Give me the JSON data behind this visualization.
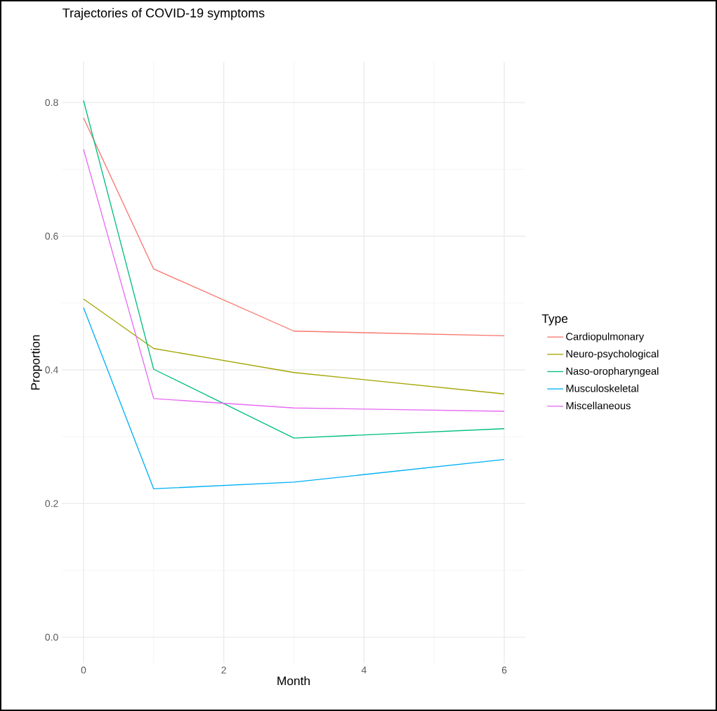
{
  "chart_data": {
    "type": "line",
    "title": "Trajectories of COVID-19 symptoms",
    "xlabel": "Month",
    "ylabel": "Proportion",
    "legend_title": "Type",
    "x": [
      0,
      1,
      3,
      6
    ],
    "series": [
      {
        "name": "Cardiopulmonary",
        "color": "#f8766d",
        "values": [
          0.777,
          0.551,
          0.458,
          0.451
        ]
      },
      {
        "name": "Neuro-psychological",
        "color": "#a3a500",
        "values": [
          0.506,
          0.432,
          0.396,
          0.364
        ]
      },
      {
        "name": "Naso-oropharyngeal",
        "color": "#00bf7d",
        "values": [
          0.803,
          0.401,
          0.298,
          0.312
        ]
      },
      {
        "name": "Musculoskeletal",
        "color": "#00b0f6",
        "values": [
          0.493,
          0.222,
          0.232,
          0.266
        ]
      },
      {
        "name": "Miscellaneous",
        "color": "#e76bf3",
        "values": [
          0.73,
          0.357,
          0.343,
          0.338
        ]
      }
    ],
    "xlim": [
      -0.31,
      6.3
    ],
    "ylim": [
      -0.039,
      0.861
    ],
    "xticks": [
      0,
      2,
      4,
      6
    ],
    "yticks": [
      {
        "value": 0,
        "label": "0.0"
      },
      {
        "value": 0.2,
        "label": "0.2"
      },
      {
        "value": 0.4,
        "label": "0.4"
      },
      {
        "value": 0.6,
        "label": "0.6"
      },
      {
        "value": 0.8,
        "label": "0.8"
      }
    ],
    "grid": true,
    "legend": "right",
    "marker": "none",
    "line_style": "solid"
  }
}
